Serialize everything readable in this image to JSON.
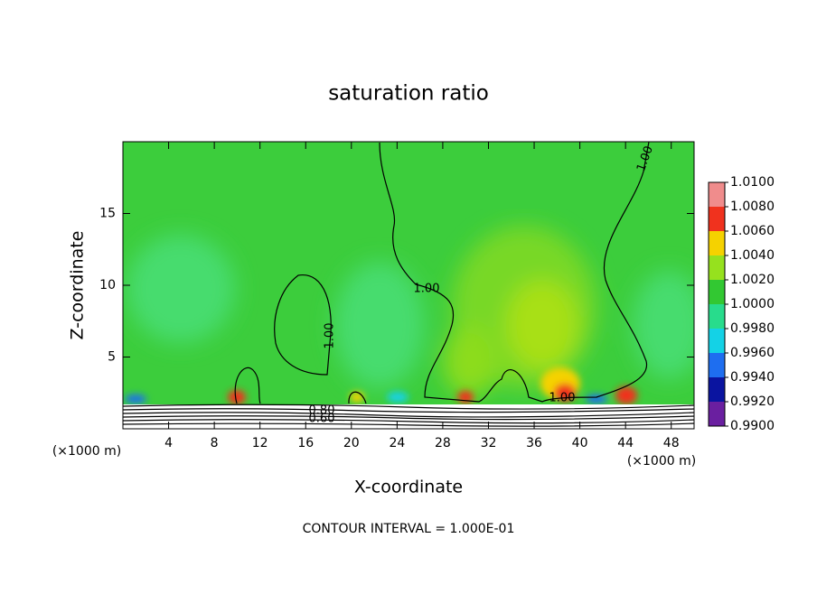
{
  "chart_data": {
    "type": "contour",
    "title": "saturation ratio",
    "x_label": "X-coordinate",
    "y_label": "Z-coordinate",
    "x_units": "(×1000 m)",
    "y_units": "(×1000 m)",
    "xlim": [
      0,
      50
    ],
    "ylim": [
      0,
      20
    ],
    "xticks": [
      4,
      8,
      12,
      16,
      20,
      24,
      28,
      32,
      36,
      40,
      44,
      48
    ],
    "yticks": [
      5,
      10,
      15
    ],
    "contour_labels": [
      "1.00",
      "1.00",
      "1.00",
      "1.00",
      "0.80",
      "0.60"
    ],
    "annotation": "CONTOUR INTERVAL = 1.000E-01",
    "colorbar": {
      "lim": [
        0.99,
        1.01
      ],
      "ticks": [
        {
          "value": 0.99,
          "label": "0.9900"
        },
        {
          "value": 0.992,
          "label": "0.9920"
        },
        {
          "value": 0.994,
          "label": "0.9940"
        },
        {
          "value": 0.996,
          "label": "0.9960"
        },
        {
          "value": 0.998,
          "label": "0.9980"
        },
        {
          "value": 1,
          "label": "1.0000"
        },
        {
          "value": 1.002,
          "label": "1.0020"
        },
        {
          "value": 1.004,
          "label": "1.0040"
        },
        {
          "value": 1.006,
          "label": "1.0060"
        },
        {
          "value": 1.008,
          "label": "1.0080"
        },
        {
          "value": 1.01,
          "label": "1.0100"
        }
      ],
      "colors": [
        "#6a1fa0",
        "#0a14a0",
        "#1e6ef0",
        "#14d2e6",
        "#28dc8c",
        "#32c832",
        "#96e11e",
        "#f5d200",
        "#f0321e",
        "#f08c8c"
      ]
    }
  }
}
